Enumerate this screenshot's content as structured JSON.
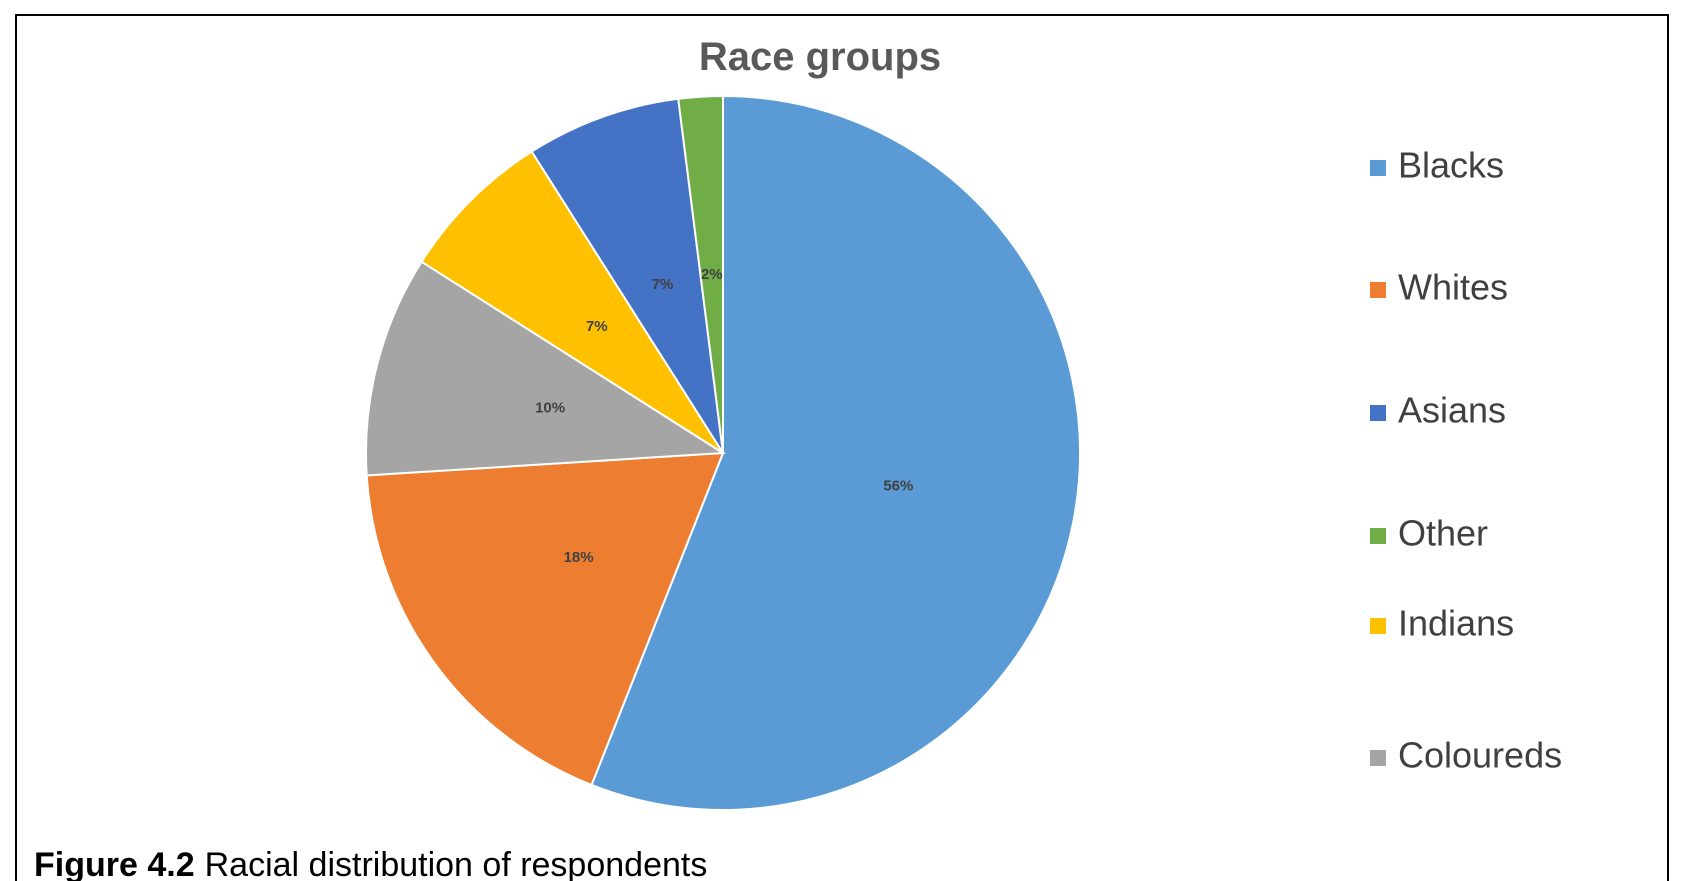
{
  "chart_data": {
    "type": "pie",
    "title": "Race groups",
    "categories": [
      "Blacks",
      "Whites",
      "Coloureds",
      "Indians",
      "Asians",
      "Other"
    ],
    "values": [
      56,
      18,
      10,
      7,
      7,
      2
    ],
    "value_labels": [
      "56%",
      "18%",
      "10%",
      "7%",
      "7%",
      "2%"
    ],
    "colors": [
      "#5b9bd5",
      "#ed7d31",
      "#a5a5a5",
      "#ffc000",
      "#4472c4",
      "#70ad47"
    ],
    "caption_label": "Figure 4.2",
    "caption_text": "Racial distribution of respondents"
  }
}
